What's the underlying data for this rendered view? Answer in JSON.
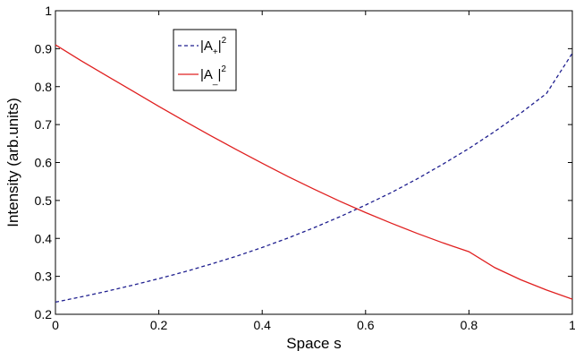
{
  "chart_data": {
    "type": "line",
    "xlabel": "Space s",
    "ylabel": "Intensity (arb.units)",
    "xlim": [
      0,
      1
    ],
    "ylim": [
      0.2,
      1
    ],
    "xticks": [
      "0",
      "0.2",
      "0.4",
      "0.6",
      "0.8",
      "1"
    ],
    "yticks": [
      "0.2",
      "0.3",
      "0.4",
      "0.5",
      "0.6",
      "0.7",
      "0.8",
      "0.9",
      "1"
    ],
    "grid": false,
    "legend_position": "top-left",
    "series": [
      {
        "name": "|A+|2",
        "legend_base": "|A",
        "legend_sub": "+",
        "legend_bar": "|",
        "legend_sup": "2",
        "color": "#1f1f8f",
        "style": "dashed",
        "x": [
          0,
          0.05,
          0.1,
          0.15,
          0.2,
          0.25,
          0.3,
          0.35,
          0.4,
          0.45,
          0.5,
          0.55,
          0.6,
          0.65,
          0.7,
          0.75,
          0.8,
          0.85,
          0.9,
          0.95,
          1.0
        ],
        "y": [
          0.232,
          0.246,
          0.261,
          0.277,
          0.294,
          0.312,
          0.332,
          0.353,
          0.376,
          0.401,
          0.428,
          0.457,
          0.488,
          0.521,
          0.557,
          0.596,
          0.637,
          0.682,
          0.73,
          0.782,
          0.888
        ]
      },
      {
        "name": "|A_|2",
        "legend_base": "|A",
        "legend_sub": "_",
        "legend_bar": "|",
        "legend_sup": "2",
        "color": "#e02020",
        "style": "solid",
        "x": [
          0,
          0.05,
          0.1,
          0.15,
          0.2,
          0.25,
          0.3,
          0.35,
          0.4,
          0.45,
          0.5,
          0.55,
          0.6,
          0.65,
          0.7,
          0.75,
          0.8,
          0.85,
          0.9,
          0.95,
          1.0
        ],
        "y": [
          0.91,
          0.868,
          0.828,
          0.788,
          0.748,
          0.709,
          0.671,
          0.634,
          0.598,
          0.563,
          0.53,
          0.498,
          0.468,
          0.44,
          0.413,
          0.388,
          0.365,
          0.323,
          0.291,
          0.264,
          0.24
        ]
      }
    ]
  }
}
